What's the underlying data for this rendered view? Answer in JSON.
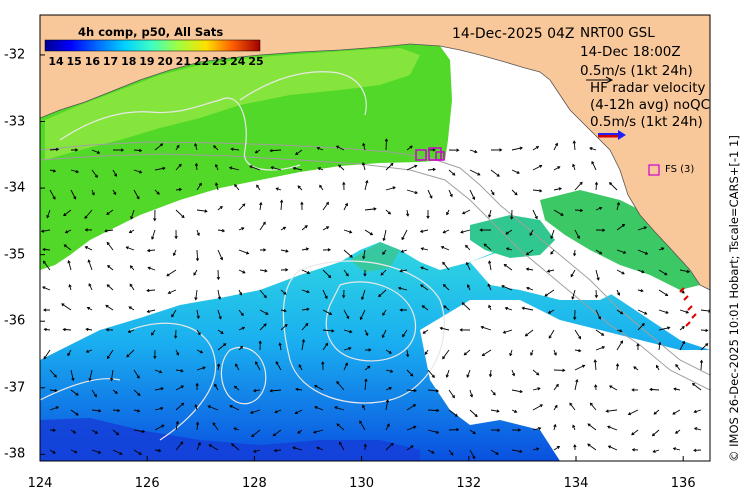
{
  "map": {
    "x_ticks": [
      "124",
      "126",
      "128",
      "130",
      "132",
      "134",
      "136"
    ],
    "y_ticks": [
      "-32",
      "-33",
      "-34",
      "-35",
      "-36",
      "-37",
      "-38"
    ],
    "lon_range": [
      124,
      136.5
    ],
    "lat_range": [
      -38.1,
      -31.4
    ],
    "colors": {
      "land": "#f9c89a",
      "cloud": "#ffffff",
      "contour": "#dddddd",
      "isobath": "#a0a0a0",
      "arrow": "#000000"
    }
  },
  "sst": {
    "title": "4h comp, p50, All Sats",
    "colorbar_ticks": [
      "14",
      "15",
      "16",
      "17",
      "18",
      "19",
      "20",
      "21",
      "22",
      "23",
      "24",
      "25"
    ],
    "colorbar_range": [
      14,
      25
    ]
  },
  "annotations": {
    "date": "14-Dec-2025 04Z",
    "glider_name": "NRT00 GSL",
    "glider_time": "14-Dec 18:00Z",
    "glider_scale": "0.5m/s (1kt 24h)",
    "hf_line1": "HF radar velocity",
    "hf_line2": "(4-12h avg) noQC",
    "hf_line3": "0.5m/s (1kt 24h)",
    "fs_label": "FS (3)"
  },
  "credit": "© IMOS 26-Dec-2025 10:01 Hobart; Tscale=CARS+[-1 1]"
}
